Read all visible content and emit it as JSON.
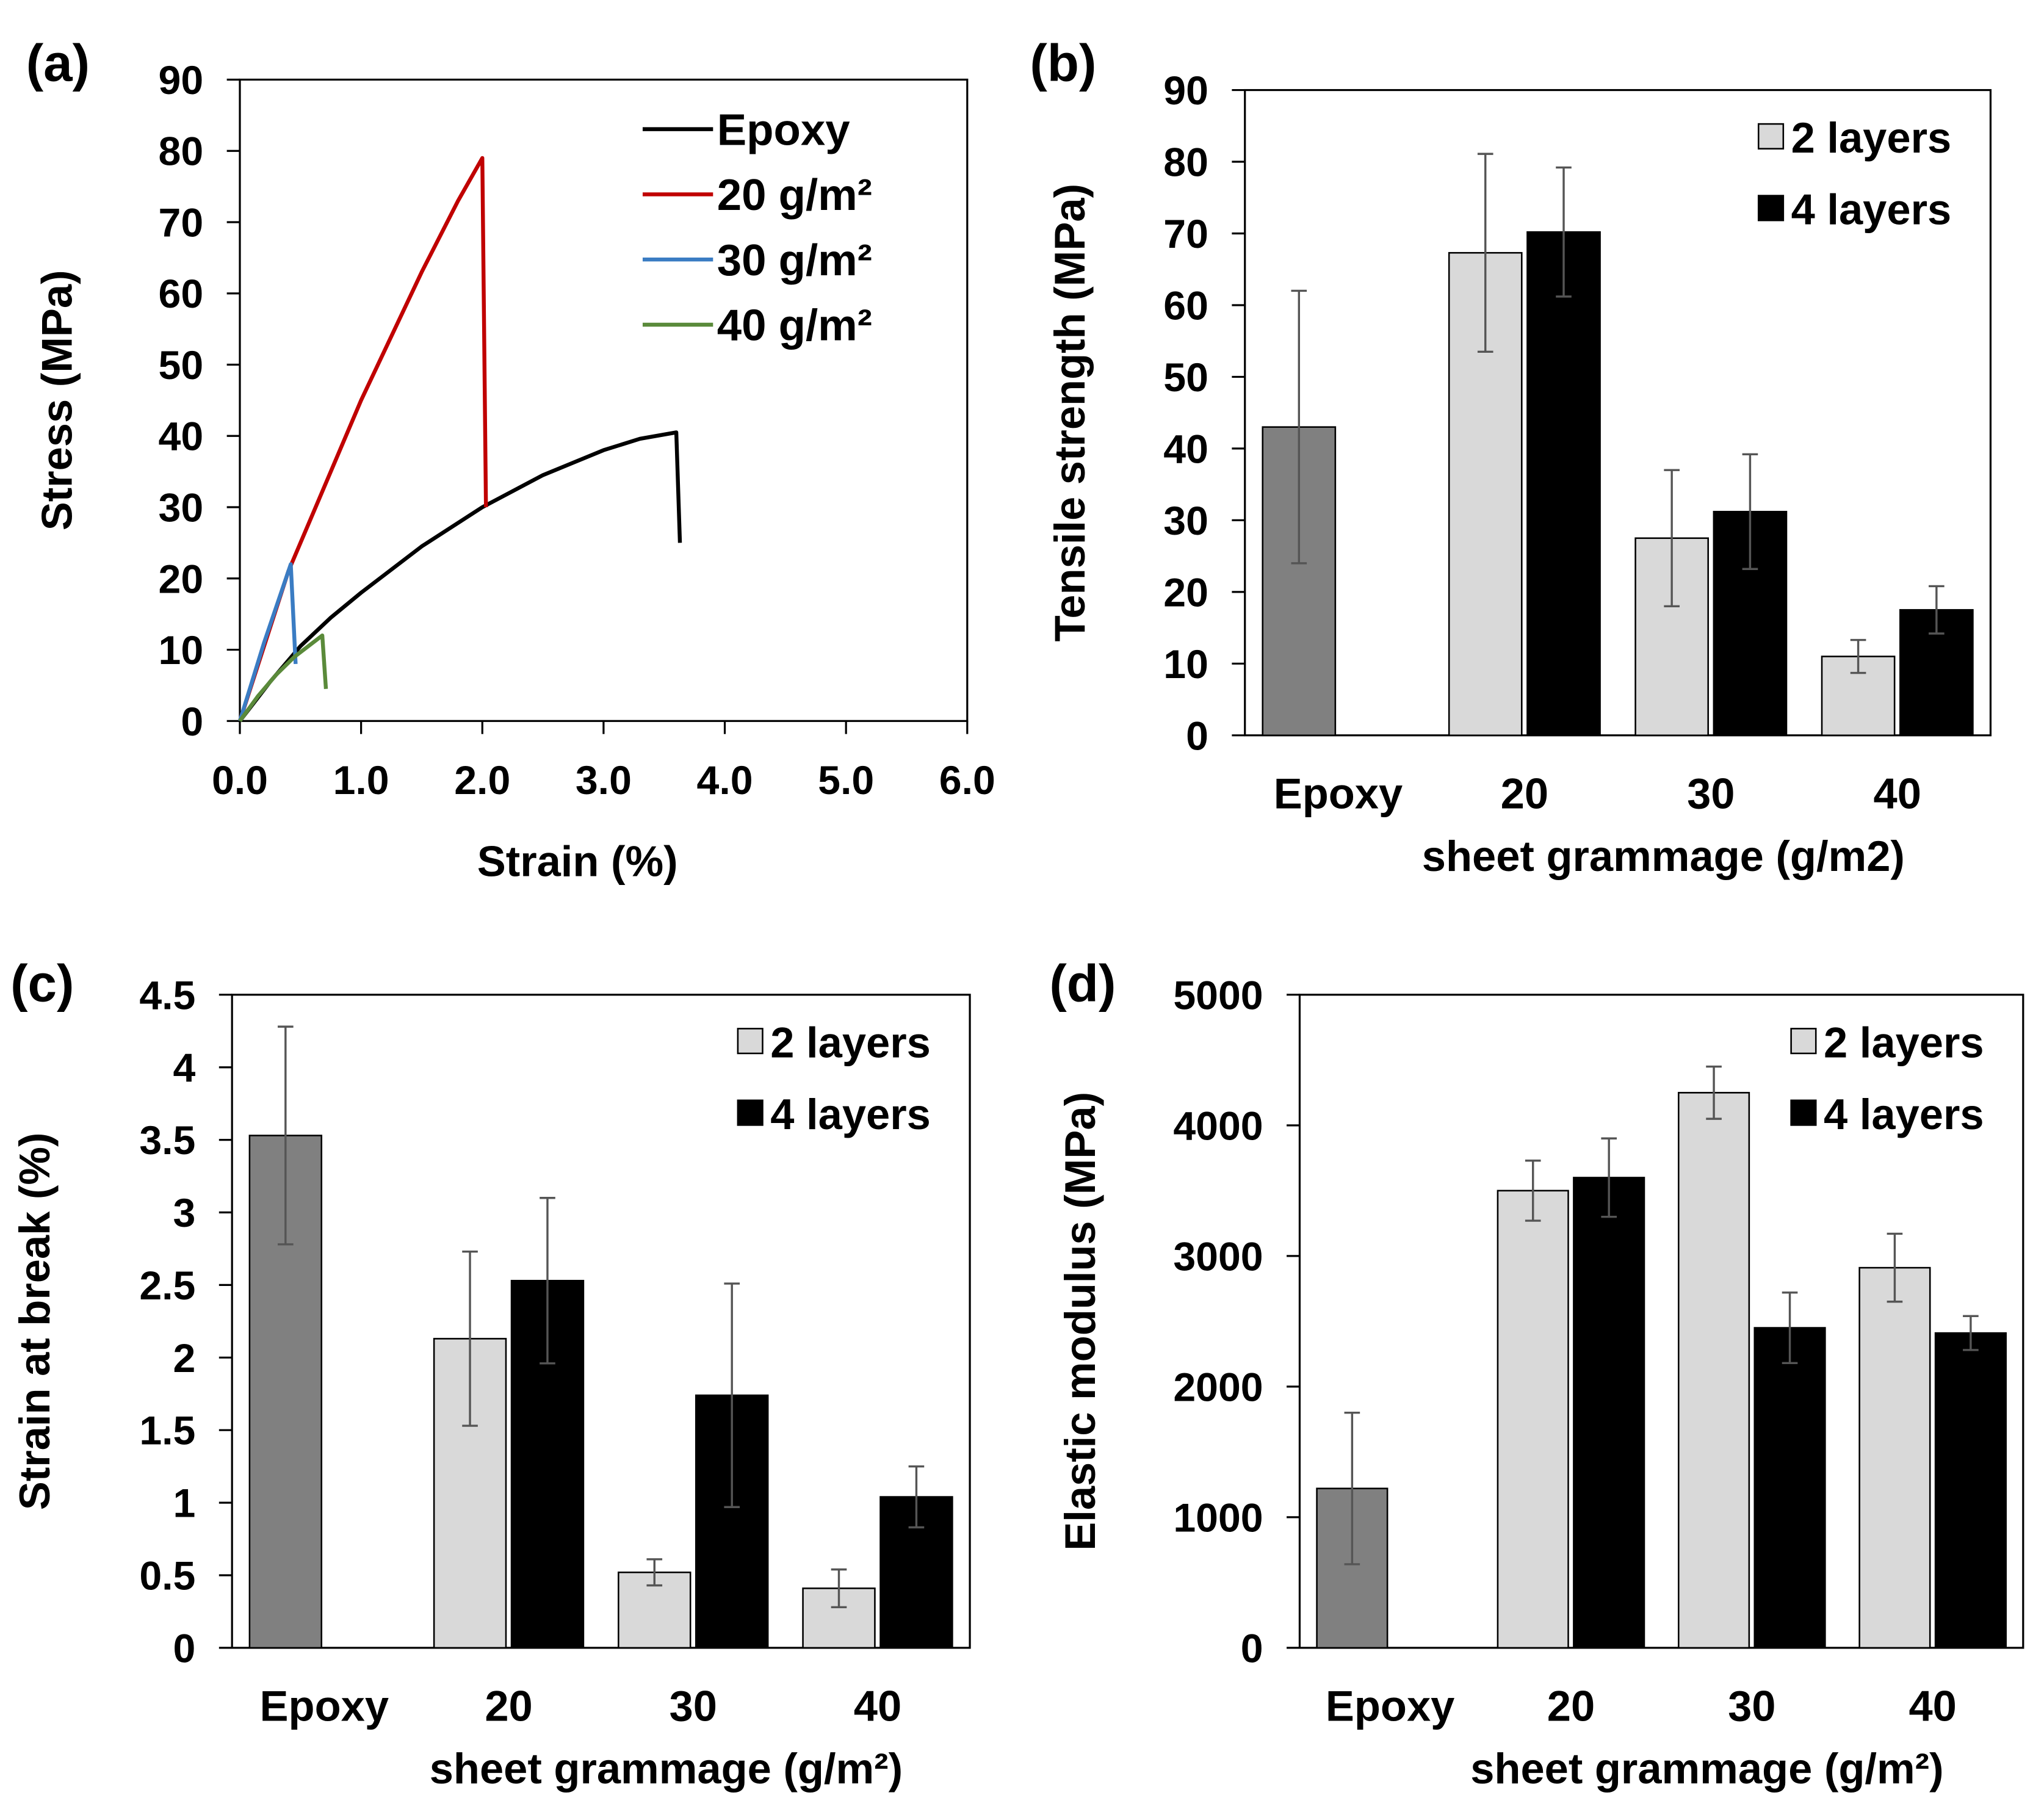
{
  "chart_data": [
    {
      "panel": "(a)",
      "type": "line",
      "xlabel": "Strain (%)",
      "ylabel": "Stress (MPa)",
      "xlim": [
        0,
        6
      ],
      "ylim": [
        0,
        90
      ],
      "xticks": [
        "0.0",
        "1.0",
        "2.0",
        "3.0",
        "4.0",
        "5.0",
        "6.0"
      ],
      "yticks": [
        "0",
        "10",
        "20",
        "30",
        "40",
        "50",
        "60",
        "70",
        "80",
        "90"
      ],
      "legend": "top-right",
      "series": [
        {
          "name": "Epoxy",
          "color": "#000000",
          "points": [
            [
              0,
              0
            ],
            [
              0.25,
              5.5
            ],
            [
              0.5,
              10.5
            ],
            [
              0.75,
              14.5
            ],
            [
              1.0,
              18
            ],
            [
              1.5,
              24.5
            ],
            [
              2.0,
              30
            ],
            [
              2.5,
              34.5
            ],
            [
              3.0,
              38
            ],
            [
              3.3,
              39.6
            ],
            [
              3.6,
              40.5
            ],
            [
              3.63,
              25
            ]
          ]
        },
        {
          "name": "20 g/m²",
          "color": "#c00000",
          "points": [
            [
              0,
              0
            ],
            [
              0.4,
              21
            ],
            [
              0.7,
              33
            ],
            [
              1.0,
              45
            ],
            [
              1.5,
              63
            ],
            [
              1.8,
              73
            ],
            [
              2.0,
              79
            ],
            [
              2.03,
              30
            ]
          ]
        },
        {
          "name": "30 g/m²",
          "color": "#3a7cc3",
          "points": [
            [
              0,
              0
            ],
            [
              0.2,
              11
            ],
            [
              0.42,
              22
            ],
            [
              0.46,
              8
            ]
          ]
        },
        {
          "name": "40 g/m²",
          "color": "#5a8a3a",
          "points": [
            [
              0,
              0
            ],
            [
              0.15,
              3.5
            ],
            [
              0.3,
              6.5
            ],
            [
              0.45,
              9
            ],
            [
              0.68,
              12
            ],
            [
              0.71,
              4.5
            ]
          ]
        }
      ]
    },
    {
      "panel": "(b)",
      "type": "bar",
      "ylabel": "Tensile strength (MPa)",
      "xlabel": "sheet grammage (g/m2)",
      "ylim": [
        0,
        90
      ],
      "yticks": [
        "0",
        "10",
        "20",
        "30",
        "40",
        "50",
        "60",
        "70",
        "80",
        "90"
      ],
      "categories": [
        "Epoxy",
        "20",
        "30",
        "40"
      ],
      "legend": "top-right",
      "epoxy": {
        "value": 43,
        "error": 19,
        "color": "#808080"
      },
      "series": [
        {
          "name": "2 layers",
          "color": "#d9d9d9",
          "values": [
            null,
            67.3,
            27.5,
            11
          ],
          "errors": [
            null,
            13.8,
            9.5,
            2.3
          ]
        },
        {
          "name": "4 layers",
          "color": "#000000",
          "values": [
            null,
            70.2,
            31.2,
            17.5
          ],
          "errors": [
            null,
            9,
            8,
            3.3
          ]
        }
      ]
    },
    {
      "panel": "(c)",
      "type": "bar",
      "ylabel": "Strain at break (%)",
      "xlabel": "sheet grammage (g/m²)",
      "ylim": [
        0,
        4.5
      ],
      "yticks": [
        "0",
        "0.5",
        "1",
        "1.5",
        "2",
        "2.5",
        "3",
        "3.5",
        "4",
        "4.5"
      ],
      "categories": [
        "Epoxy",
        "20",
        "30",
        "40"
      ],
      "legend": "top-right",
      "epoxy": {
        "value": 3.53,
        "error": 0.75,
        "color": "#808080"
      },
      "series": [
        {
          "name": "2 layers",
          "color": "#d9d9d9",
          "values": [
            null,
            2.13,
            0.52,
            0.41
          ],
          "errors": [
            null,
            0.6,
            0.09,
            0.13
          ]
        },
        {
          "name": "4 layers",
          "color": "#000000",
          "values": [
            null,
            2.53,
            1.74,
            1.04
          ],
          "errors": [
            null,
            0.57,
            0.77,
            0.21
          ]
        }
      ]
    },
    {
      "panel": "(d)",
      "type": "bar",
      "ylabel": "Elastic modulus (MPa)",
      "xlabel": "sheet grammage (g/m²)",
      "ylim": [
        0,
        5000
      ],
      "yticks": [
        "0",
        "1000",
        "2000",
        "3000",
        "4000",
        "5000"
      ],
      "categories": [
        "Epoxy",
        "20",
        "30",
        "40"
      ],
      "legend": "top-right",
      "epoxy": {
        "value": 1220,
        "error": 580,
        "color": "#808080"
      },
      "series": [
        {
          "name": "2 layers",
          "color": "#d9d9d9",
          "values": [
            null,
            3500,
            4250,
            2910
          ],
          "errors": [
            null,
            230,
            200,
            260
          ]
        },
        {
          "name": "4 layers",
          "color": "#000000",
          "values": [
            null,
            3600,
            2450,
            2410
          ],
          "errors": [
            null,
            300,
            270,
            130
          ]
        }
      ]
    }
  ]
}
